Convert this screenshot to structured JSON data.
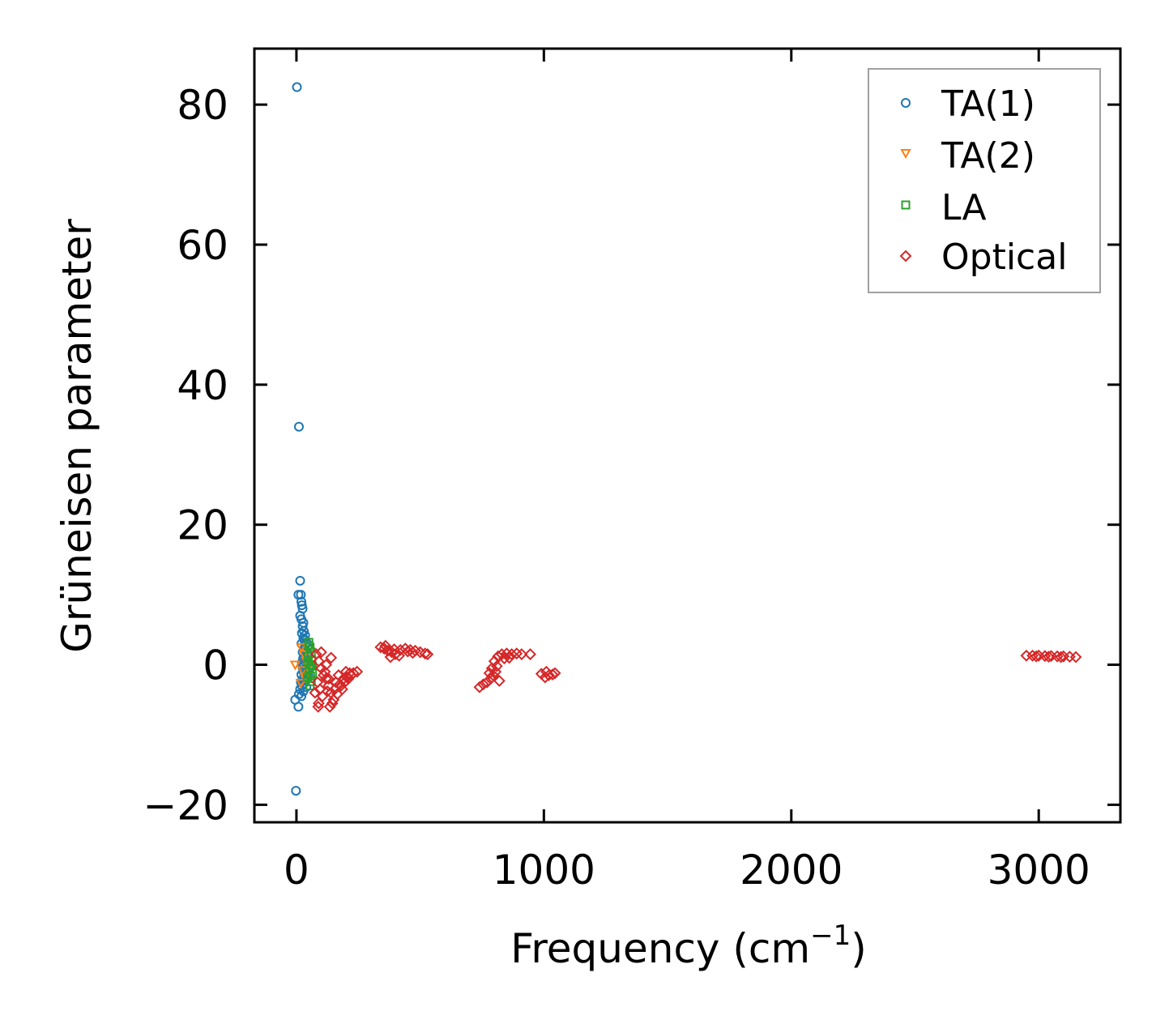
{
  "chart_data": {
    "type": "scatter",
    "title": "",
    "xlabel": "Frequency (cm",
    "xlabel_sup": "−1",
    "xlabel_end": ")",
    "ylabel": "Grüneisen parameter",
    "xlim": [
      -170,
      3330
    ],
    "ylim": [
      -22.5,
      88
    ],
    "xticks": [
      0,
      1000,
      2000,
      3000
    ],
    "xtick_labels": [
      "0",
      "1000",
      "2000",
      "3000"
    ],
    "yticks": [
      -20,
      0,
      20,
      40,
      60,
      80
    ],
    "ytick_labels": [
      "−20",
      "0",
      "20",
      "40",
      "60",
      "80"
    ],
    "grid": false,
    "legend": "top-right",
    "series": [
      {
        "name": "TA(1)",
        "marker": "circle",
        "color": "#1f77b4",
        "points": [
          [
            2,
            82.5
          ],
          [
            10,
            34
          ],
          [
            15,
            12
          ],
          [
            8,
            10
          ],
          [
            18,
            10
          ],
          [
            20,
            9
          ],
          [
            22,
            8.5
          ],
          [
            25,
            8
          ],
          [
            15,
            7
          ],
          [
            20,
            6.5
          ],
          [
            28,
            6
          ],
          [
            25,
            5.5
          ],
          [
            30,
            4.8
          ],
          [
            22,
            4.5
          ],
          [
            35,
            4.2
          ],
          [
            28,
            3.8
          ],
          [
            32,
            3.5
          ],
          [
            40,
            3.2
          ],
          [
            20,
            3
          ],
          [
            35,
            2.8
          ],
          [
            45,
            2.5
          ],
          [
            30,
            2.2
          ],
          [
            38,
            2
          ],
          [
            25,
            1.8
          ],
          [
            42,
            1.5
          ],
          [
            50,
            1.3
          ],
          [
            33,
            1.1
          ],
          [
            27,
            0.9
          ],
          [
            45,
            0.7
          ],
          [
            36,
            0.5
          ],
          [
            22,
            0.3
          ],
          [
            48,
            0.2
          ],
          [
            30,
            0
          ],
          [
            40,
            -0.2
          ],
          [
            25,
            -0.4
          ],
          [
            52,
            -0.5
          ],
          [
            35,
            -0.7
          ],
          [
            44,
            -0.9
          ],
          [
            28,
            -1
          ],
          [
            38,
            -1.2
          ],
          [
            20,
            -1.4
          ],
          [
            48,
            -1.5
          ],
          [
            32,
            -1.7
          ],
          [
            42,
            -1.9
          ],
          [
            25,
            -2.1
          ],
          [
            36,
            -2.3
          ],
          [
            18,
            -2.5
          ],
          [
            30,
            -2.7
          ],
          [
            22,
            -3
          ],
          [
            40,
            -3.2
          ],
          [
            15,
            -3.5
          ],
          [
            28,
            -3.8
          ],
          [
            10,
            -4.2
          ],
          [
            20,
            -4.5
          ],
          [
            -5,
            -5
          ],
          [
            8,
            -6
          ],
          [
            -2,
            -18
          ]
        ]
      },
      {
        "name": "TA(2)",
        "marker": "triangle-down",
        "color": "#ff7f0e",
        "points": [
          [
            -5,
            0
          ],
          [
            20,
            2.5
          ],
          [
            30,
            1.5
          ],
          [
            40,
            0.5
          ],
          [
            25,
            -0.8
          ],
          [
            35,
            -1.8
          ],
          [
            18,
            -2.6
          ],
          [
            45,
            -0.3
          ]
        ]
      },
      {
        "name": "LA",
        "marker": "square",
        "color": "#2ca02c",
        "points": [
          [
            50,
            3.2
          ],
          [
            55,
            2.5
          ],
          [
            60,
            1.8
          ],
          [
            48,
            1.2
          ],
          [
            62,
            0.6
          ],
          [
            58,
            0
          ],
          [
            52,
            -0.6
          ],
          [
            65,
            -1.2
          ],
          [
            45,
            -1.8
          ],
          [
            60,
            -2.4
          ],
          [
            55,
            -3
          ],
          [
            50,
            2.8
          ],
          [
            64,
            -0.2
          ],
          [
            46,
            0.4
          ],
          [
            57,
            -1.6
          ]
        ]
      },
      {
        "name": "Optical",
        "marker": "diamond",
        "color": "#d62728",
        "points": [
          [
            80,
            1.5
          ],
          [
            90,
            0.5
          ],
          [
            100,
            -0.5
          ],
          [
            110,
            -1.5
          ],
          [
            85,
            -2.5
          ],
          [
            95,
            -3.5
          ],
          [
            105,
            -4.5
          ],
          [
            90,
            -5.5
          ],
          [
            120,
            -2
          ],
          [
            130,
            -3
          ],
          [
            140,
            -4
          ],
          [
            150,
            -5
          ],
          [
            135,
            -6
          ],
          [
            160,
            -2.5
          ],
          [
            170,
            -1.5
          ],
          [
            180,
            -3
          ],
          [
            190,
            -2
          ],
          [
            200,
            -1
          ],
          [
            210,
            -2
          ],
          [
            220,
            -1.5
          ],
          [
            230,
            -1.2
          ],
          [
            245,
            -1
          ],
          [
            120,
            0
          ],
          [
            140,
            1
          ],
          [
            100,
            1.8
          ],
          [
            115,
            -1
          ],
          [
            125,
            -3.8
          ],
          [
            155,
            -3.5
          ],
          [
            165,
            -4.2
          ],
          [
            175,
            -2.8
          ],
          [
            185,
            -3.5
          ],
          [
            195,
            -2.5
          ],
          [
            205,
            -1.8
          ],
          [
            215,
            -1.2
          ],
          [
            75,
            -4
          ],
          [
            88,
            -6
          ],
          [
            145,
            -5.5
          ],
          [
            130,
            -2
          ],
          [
            340,
            2.5
          ],
          [
            355,
            2.3
          ],
          [
            370,
            2
          ],
          [
            385,
            1.8
          ],
          [
            400,
            1.5
          ],
          [
            415,
            1.3
          ],
          [
            380,
            1.1
          ],
          [
            420,
            2.1
          ],
          [
            440,
            2.3
          ],
          [
            460,
            2.1
          ],
          [
            480,
            2
          ],
          [
            500,
            1.8
          ],
          [
            520,
            1.6
          ],
          [
            530,
            1.5
          ],
          [
            450,
            1.9
          ],
          [
            470,
            1.7
          ],
          [
            360,
            2.7
          ],
          [
            395,
            2.2
          ],
          [
            740,
            -3.2
          ],
          [
            755,
            -2.8
          ],
          [
            770,
            -2.5
          ],
          [
            785,
            -2
          ],
          [
            795,
            -1.5
          ],
          [
            805,
            -1
          ],
          [
            810,
            -0.2
          ],
          [
            800,
            0.5
          ],
          [
            815,
            1.2
          ],
          [
            830,
            1.5
          ],
          [
            850,
            1.6
          ],
          [
            870,
            1.5
          ],
          [
            890,
            1.6
          ],
          [
            910,
            1.5
          ],
          [
            945,
            1.5
          ],
          [
            820,
            -2.3
          ],
          [
            780,
            -1.2
          ],
          [
            840,
            0.9
          ],
          [
            860,
            1.0
          ],
          [
            790,
            -0.5
          ],
          [
            990,
            -1.3
          ],
          [
            1005,
            -1.8
          ],
          [
            1020,
            -1.5
          ],
          [
            1035,
            -1.4
          ],
          [
            1045,
            -1.2
          ],
          [
            1010,
            -1
          ],
          [
            2950,
            1.3
          ],
          [
            2975,
            1.3
          ],
          [
            3000,
            1.3
          ],
          [
            3025,
            1.25
          ],
          [
            3050,
            1.25
          ],
          [
            3075,
            1.2
          ],
          [
            3100,
            1.2
          ],
          [
            3125,
            1.15
          ],
          [
            3150,
            1.1
          ],
          [
            2990,
            1.2
          ],
          [
            3040,
            1.15
          ],
          [
            3090,
            1.1
          ]
        ]
      }
    ]
  }
}
